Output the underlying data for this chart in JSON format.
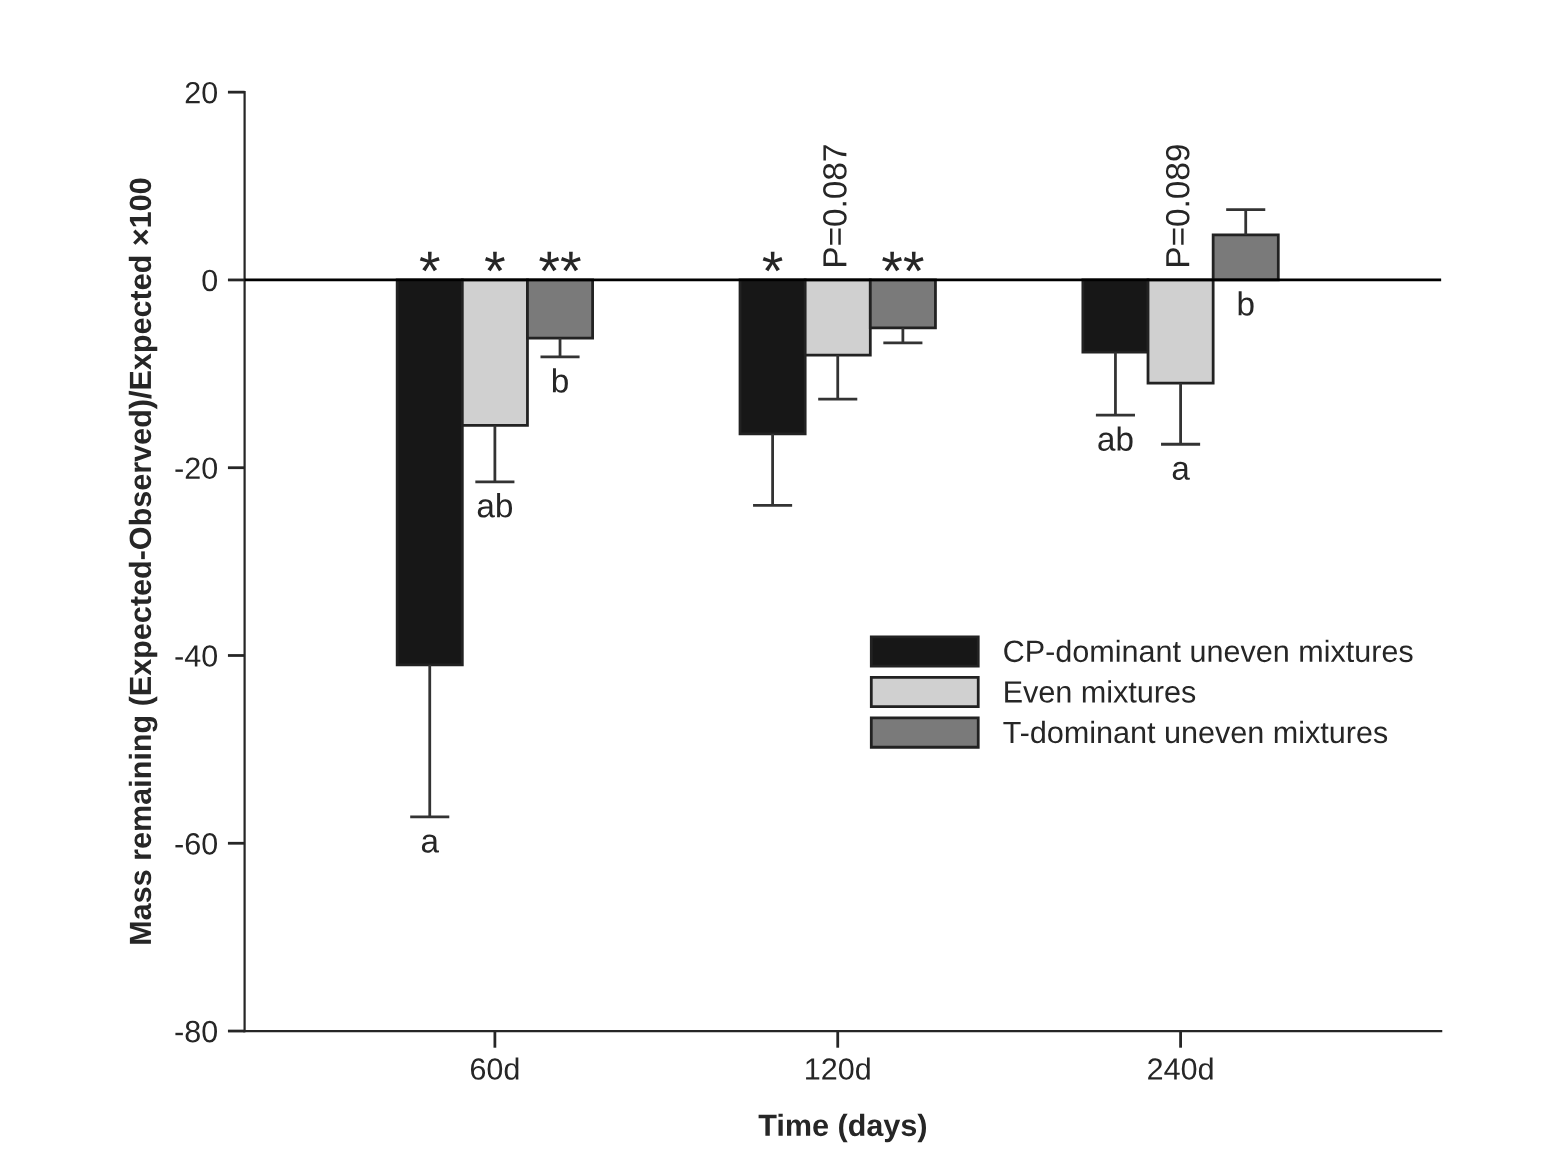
{
  "chart_data": {
    "type": "bar",
    "xlabel": "Time (days)",
    "ylabel": "Mass remaining (Expected-Observed)/Expected ×100",
    "categories": [
      "60d",
      "120d",
      "240d"
    ],
    "series": [
      {
        "name": "CP-dominant uneven mixtures",
        "color": "#171717",
        "values": [
          -41.0,
          -16.4,
          -7.7
        ],
        "errors": [
          [
            -57.2,
            -41.0
          ],
          [
            -24.0,
            -16.4
          ],
          [
            -14.4,
            -7.7
          ]
        ]
      },
      {
        "name": "Even mixtures",
        "color": "#d0d0d0",
        "values": [
          -15.5,
          -8.0,
          -11.0
        ],
        "errors": [
          [
            -21.5,
            -15.5
          ],
          [
            -12.7,
            -8.0
          ],
          [
            -17.5,
            -11.0
          ]
        ]
      },
      {
        "name": "T-dominant uneven mixtures",
        "color": "#7a7a7a",
        "values": [
          -6.2,
          -5.1,
          4.8
        ],
        "errors": [
          [
            -8.2,
            -6.2
          ],
          [
            -6.7,
            -5.1
          ],
          [
            4.8,
            7.5
          ]
        ]
      }
    ],
    "ylim": [
      -80,
      20
    ],
    "yticks": [
      -80,
      -60,
      -40,
      -20,
      0,
      20
    ],
    "ref_lines": [
      {
        "axis": "y",
        "value": 0,
        "color": "#000000"
      }
    ],
    "annotations": [
      "*",
      "*",
      "**",
      "a",
      "ab",
      "b",
      "*",
      "P=0.087",
      "**",
      "ab",
      "a",
      "b",
      "P=0.089"
    ],
    "legend": "right",
    "grid": false
  }
}
